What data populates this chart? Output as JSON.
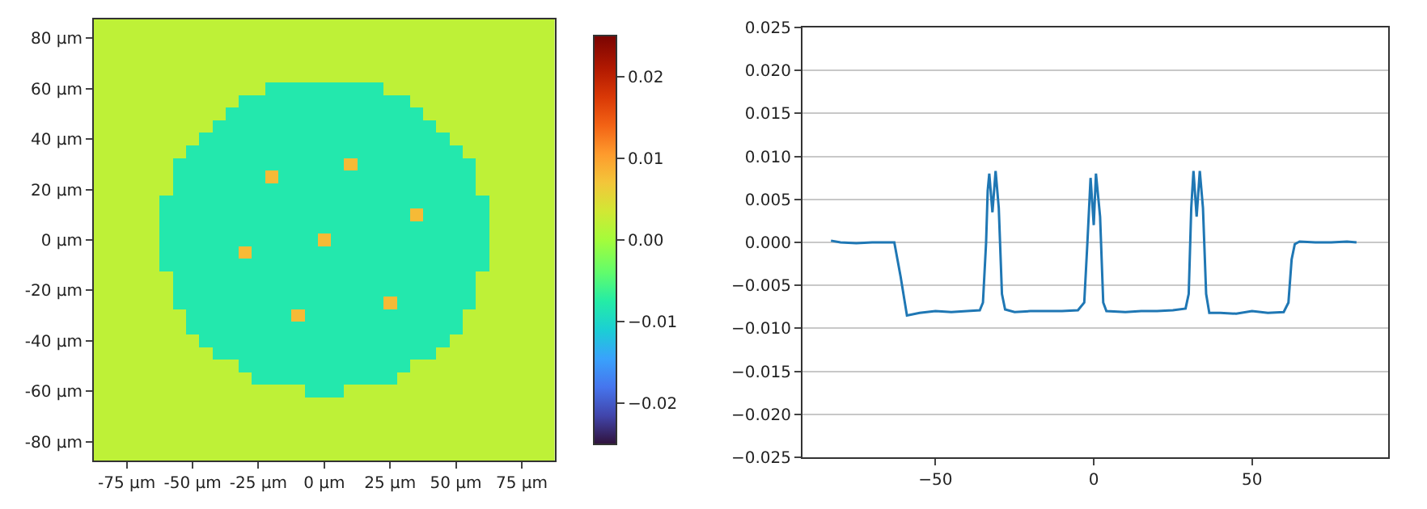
{
  "chart_data": [
    {
      "type": "heatmap",
      "x": [
        -85,
        -80,
        -75,
        -70,
        -65,
        -60,
        -55,
        -50,
        -45,
        -40,
        -35,
        -30,
        -25,
        -20,
        -15,
        -10,
        -5,
        0,
        5,
        10,
        15,
        20,
        25,
        30,
        35,
        40,
        45,
        50,
        55,
        60,
        65,
        70,
        75,
        80,
        85
      ],
      "y": [
        85,
        80,
        75,
        70,
        65,
        60,
        55,
        50,
        45,
        40,
        35,
        30,
        25,
        20,
        15,
        10,
        5,
        0,
        -5,
        -10,
        -15,
        -20,
        -25,
        -30,
        -35,
        -40,
        -45,
        -50,
        -55,
        -60,
        -65,
        -70,
        -75,
        -80,
        -85
      ],
      "cells": [
        [
          0.002,
          0.002,
          0.002,
          0.002,
          0.002,
          0.002,
          0.002,
          0.002,
          0.002,
          0.002,
          0.002,
          0.002,
          0.002,
          0.002,
          0.002,
          0.002,
          0.002,
          0.002,
          0.002,
          0.002,
          0.002,
          0.002,
          0.002,
          0.002,
          0.002,
          0.002,
          0.002,
          0.002,
          0.002,
          0.002,
          0.002,
          0.002,
          0.002,
          0.002,
          0.002
        ],
        [
          0.002,
          0.002,
          0.002,
          0.002,
          0.002,
          0.002,
          0.002,
          0.002,
          0.002,
          0.002,
          0.002,
          0.002,
          0.002,
          0.002,
          0.002,
          0.002,
          0.002,
          0.002,
          0.002,
          0.002,
          0.002,
          0.002,
          0.002,
          0.002,
          0.002,
          0.002,
          0.002,
          0.002,
          0.002,
          0.002,
          0.002,
          0.002,
          0.002,
          0.002,
          0.002
        ],
        [
          0.002,
          0.002,
          0.002,
          0.002,
          0.002,
          0.002,
          0.002,
          0.002,
          0.002,
          0.002,
          0.002,
          0.002,
          0.002,
          0.002,
          0.002,
          0.002,
          0.002,
          0.002,
          0.002,
          0.002,
          0.002,
          0.002,
          0.002,
          0.002,
          0.002,
          0.002,
          0.002,
          0.002,
          0.002,
          0.002,
          0.002,
          0.002,
          0.002,
          0.002,
          0.002
        ],
        [
          0.002,
          0.002,
          0.002,
          0.002,
          0.002,
          0.002,
          0.002,
          0.002,
          0.002,
          0.002,
          0.002,
          0.002,
          0.002,
          0.002,
          0.002,
          0.002,
          0.002,
          0.002,
          0.002,
          0.002,
          0.002,
          0.002,
          0.002,
          0.002,
          0.002,
          0.002,
          0.002,
          0.002,
          0.002,
          0.002,
          0.002,
          0.002,
          0.002,
          0.002,
          0.002
        ],
        [
          0.002,
          0.002,
          0.002,
          0.002,
          0.002,
          0.002,
          0.002,
          0.002,
          0.002,
          0.002,
          0.002,
          0.002,
          0.002,
          0.002,
          0.002,
          0.002,
          0.002,
          0.002,
          0.002,
          0.002,
          0.002,
          0.002,
          0.002,
          0.002,
          0.002,
          0.002,
          0.002,
          0.002,
          0.002,
          0.002,
          0.002,
          0.002,
          0.002,
          0.002,
          0.002
        ],
        [
          0.002,
          0.002,
          0.002,
          0.002,
          0.002,
          0.002,
          0.002,
          0.002,
          0.002,
          0.002,
          0.002,
          0.002,
          0.002,
          -0.008,
          -0.008,
          -0.008,
          -0.008,
          -0.008,
          -0.008,
          -0.008,
          -0.008,
          -0.008,
          0.002,
          0.002,
          0.002,
          0.002,
          0.002,
          0.002,
          0.002,
          0.002,
          0.002,
          0.002,
          0.002,
          0.002,
          0.002
        ],
        [
          0.002,
          0.002,
          0.002,
          0.002,
          0.002,
          0.002,
          0.002,
          0.002,
          0.002,
          0.002,
          0.002,
          -0.008,
          -0.008,
          -0.008,
          -0.008,
          -0.008,
          -0.008,
          -0.008,
          -0.008,
          -0.008,
          -0.008,
          -0.008,
          -0.008,
          -0.008,
          0.002,
          0.002,
          0.002,
          0.002,
          0.002,
          0.002,
          0.002,
          0.002,
          0.002,
          0.002,
          0.002
        ],
        [
          0.002,
          0.002,
          0.002,
          0.002,
          0.002,
          0.002,
          0.002,
          0.002,
          0.002,
          0.002,
          -0.008,
          -0.008,
          -0.008,
          -0.008,
          -0.008,
          -0.008,
          -0.008,
          -0.008,
          -0.008,
          -0.008,
          -0.008,
          -0.008,
          -0.008,
          -0.008,
          -0.008,
          0.002,
          0.002,
          0.002,
          0.002,
          0.002,
          0.002,
          0.002,
          0.002,
          0.002,
          0.002
        ],
        [
          0.002,
          0.002,
          0.002,
          0.002,
          0.002,
          0.002,
          0.002,
          0.002,
          0.002,
          -0.008,
          -0.008,
          -0.008,
          -0.008,
          -0.008,
          -0.008,
          -0.008,
          -0.008,
          -0.008,
          -0.008,
          -0.008,
          -0.008,
          -0.008,
          -0.008,
          -0.008,
          -0.008,
          -0.008,
          0.002,
          0.002,
          0.002,
          0.002,
          0.002,
          0.002,
          0.002,
          0.002,
          0.002
        ],
        [
          0.002,
          0.002,
          0.002,
          0.002,
          0.002,
          0.002,
          0.002,
          0.002,
          -0.008,
          -0.008,
          -0.008,
          -0.008,
          -0.008,
          -0.008,
          -0.008,
          -0.008,
          -0.008,
          -0.008,
          -0.008,
          -0.008,
          -0.008,
          -0.008,
          -0.008,
          -0.008,
          -0.008,
          -0.008,
          -0.008,
          0.002,
          0.002,
          0.002,
          0.002,
          0.002,
          0.002,
          0.002,
          0.002
        ],
        [
          0.002,
          0.002,
          0.002,
          0.002,
          0.002,
          0.002,
          0.002,
          -0.008,
          -0.008,
          -0.008,
          -0.008,
          -0.008,
          -0.008,
          -0.008,
          -0.008,
          -0.008,
          -0.008,
          -0.008,
          -0.008,
          -0.008,
          -0.008,
          -0.008,
          -0.008,
          -0.008,
          -0.008,
          -0.008,
          -0.008,
          -0.008,
          0.002,
          0.002,
          0.002,
          0.002,
          0.002,
          0.002,
          0.002
        ],
        [
          0.002,
          0.002,
          0.002,
          0.002,
          0.002,
          0.002,
          -0.008,
          -0.008,
          -0.008,
          -0.008,
          -0.008,
          -0.008,
          -0.008,
          -0.008,
          -0.008,
          -0.008,
          -0.008,
          -0.008,
          -0.008,
          0.008,
          -0.008,
          -0.008,
          -0.008,
          -0.008,
          -0.008,
          -0.008,
          -0.008,
          -0.008,
          -0.008,
          0.002,
          0.002,
          0.002,
          0.002,
          0.002,
          0.002
        ],
        [
          0.002,
          0.002,
          0.002,
          0.002,
          0.002,
          0.002,
          -0.008,
          -0.008,
          -0.008,
          -0.008,
          -0.008,
          -0.008,
          -0.008,
          0.008,
          -0.008,
          -0.008,
          -0.008,
          -0.008,
          -0.008,
          -0.008,
          -0.008,
          -0.008,
          -0.008,
          -0.008,
          -0.008,
          -0.008,
          -0.008,
          -0.008,
          -0.008,
          0.002,
          0.002,
          0.002,
          0.002,
          0.002,
          0.002
        ],
        [
          0.002,
          0.002,
          0.002,
          0.002,
          0.002,
          0.002,
          -0.008,
          -0.008,
          -0.008,
          -0.008,
          -0.008,
          -0.008,
          -0.008,
          -0.008,
          -0.008,
          -0.008,
          -0.008,
          -0.008,
          -0.008,
          -0.008,
          -0.008,
          -0.008,
          -0.008,
          -0.008,
          -0.008,
          -0.008,
          -0.008,
          -0.008,
          -0.008,
          0.002,
          0.002,
          0.002,
          0.002,
          0.002,
          0.002
        ],
        [
          0.002,
          0.002,
          0.002,
          0.002,
          0.002,
          -0.008,
          -0.008,
          -0.008,
          -0.008,
          -0.008,
          -0.008,
          -0.008,
          -0.008,
          -0.008,
          -0.008,
          -0.008,
          -0.008,
          -0.008,
          -0.008,
          -0.008,
          -0.008,
          -0.008,
          -0.008,
          -0.008,
          -0.008,
          -0.008,
          -0.008,
          -0.008,
          -0.008,
          -0.008,
          0.002,
          0.002,
          0.002,
          0.002,
          0.002
        ],
        [
          0.002,
          0.002,
          0.002,
          0.002,
          0.002,
          -0.008,
          -0.008,
          -0.008,
          -0.008,
          -0.008,
          -0.008,
          -0.008,
          -0.008,
          -0.008,
          -0.008,
          -0.008,
          -0.008,
          -0.008,
          -0.008,
          -0.008,
          -0.008,
          -0.008,
          -0.008,
          -0.008,
          0.008,
          -0.008,
          -0.008,
          -0.008,
          -0.008,
          -0.008,
          0.002,
          0.002,
          0.002,
          0.002,
          0.002
        ],
        [
          0.002,
          0.002,
          0.002,
          0.002,
          0.002,
          -0.008,
          -0.008,
          -0.008,
          -0.008,
          -0.008,
          -0.008,
          -0.008,
          -0.008,
          -0.008,
          -0.008,
          -0.008,
          -0.008,
          -0.008,
          -0.008,
          -0.008,
          -0.008,
          -0.008,
          -0.008,
          -0.008,
          -0.008,
          -0.008,
          -0.008,
          -0.008,
          -0.008,
          -0.008,
          0.002,
          0.002,
          0.002,
          0.002,
          0.002
        ],
        [
          0.002,
          0.002,
          0.002,
          0.002,
          0.002,
          -0.008,
          -0.008,
          -0.008,
          -0.008,
          -0.008,
          -0.008,
          -0.008,
          -0.008,
          -0.008,
          -0.008,
          -0.008,
          -0.008,
          0.008,
          -0.008,
          -0.008,
          -0.008,
          -0.008,
          -0.008,
          -0.008,
          -0.008,
          -0.008,
          -0.008,
          -0.008,
          -0.008,
          -0.008,
          0.002,
          0.002,
          0.002,
          0.002,
          0.002
        ],
        [
          0.002,
          0.002,
          0.002,
          0.002,
          0.002,
          -0.008,
          -0.008,
          -0.008,
          -0.008,
          -0.008,
          -0.008,
          0.008,
          -0.008,
          -0.008,
          -0.008,
          -0.008,
          -0.008,
          -0.008,
          -0.008,
          -0.008,
          -0.008,
          -0.008,
          -0.008,
          -0.008,
          -0.008,
          -0.008,
          -0.008,
          -0.008,
          -0.008,
          -0.008,
          0.002,
          0.002,
          0.002,
          0.002,
          0.002
        ],
        [
          0.002,
          0.002,
          0.002,
          0.002,
          0.002,
          -0.008,
          -0.008,
          -0.008,
          -0.008,
          -0.008,
          -0.008,
          -0.008,
          -0.008,
          -0.008,
          -0.008,
          -0.008,
          -0.008,
          -0.008,
          -0.008,
          -0.008,
          -0.008,
          -0.008,
          -0.008,
          -0.008,
          -0.008,
          -0.008,
          -0.008,
          -0.008,
          -0.008,
          -0.008,
          0.002,
          0.002,
          0.002,
          0.002,
          0.002
        ],
        [
          0.002,
          0.002,
          0.002,
          0.002,
          0.002,
          0.002,
          -0.008,
          -0.008,
          -0.008,
          -0.008,
          -0.008,
          -0.008,
          -0.008,
          -0.008,
          -0.008,
          -0.008,
          -0.008,
          -0.008,
          -0.008,
          -0.008,
          -0.008,
          -0.008,
          -0.008,
          -0.008,
          -0.008,
          -0.008,
          -0.008,
          -0.008,
          -0.008,
          0.002,
          0.002,
          0.002,
          0.002,
          0.002,
          0.002
        ],
        [
          0.002,
          0.002,
          0.002,
          0.002,
          0.002,
          0.002,
          -0.008,
          -0.008,
          -0.008,
          -0.008,
          -0.008,
          -0.008,
          -0.008,
          -0.008,
          -0.008,
          -0.008,
          -0.008,
          -0.008,
          -0.008,
          -0.008,
          -0.008,
          -0.008,
          -0.008,
          -0.008,
          -0.008,
          -0.008,
          -0.008,
          -0.008,
          -0.008,
          0.002,
          0.002,
          0.002,
          0.002,
          0.002,
          0.002
        ],
        [
          0.002,
          0.002,
          0.002,
          0.002,
          0.002,
          0.002,
          -0.008,
          -0.008,
          -0.008,
          -0.008,
          -0.008,
          -0.008,
          -0.008,
          -0.008,
          -0.008,
          -0.008,
          -0.008,
          -0.008,
          -0.008,
          -0.008,
          -0.008,
          -0.008,
          0.008,
          -0.008,
          -0.008,
          -0.008,
          -0.008,
          -0.008,
          -0.008,
          0.002,
          0.002,
          0.002,
          0.002,
          0.002,
          0.002
        ],
        [
          0.002,
          0.002,
          0.002,
          0.002,
          0.002,
          0.002,
          0.002,
          -0.008,
          -0.008,
          -0.008,
          -0.008,
          -0.008,
          -0.008,
          -0.008,
          -0.008,
          0.008,
          -0.008,
          -0.008,
          -0.008,
          -0.008,
          -0.008,
          -0.008,
          -0.008,
          -0.008,
          -0.008,
          -0.008,
          -0.008,
          -0.008,
          0.002,
          0.002,
          0.002,
          0.002,
          0.002,
          0.002,
          0.002
        ],
        [
          0.002,
          0.002,
          0.002,
          0.002,
          0.002,
          0.002,
          0.002,
          -0.008,
          -0.008,
          -0.008,
          -0.008,
          -0.008,
          -0.008,
          -0.008,
          -0.008,
          -0.008,
          -0.008,
          -0.008,
          -0.008,
          -0.008,
          -0.008,
          -0.008,
          -0.008,
          -0.008,
          -0.008,
          -0.008,
          -0.008,
          -0.008,
          0.002,
          0.002,
          0.002,
          0.002,
          0.002,
          0.002,
          0.002
        ],
        [
          0.002,
          0.002,
          0.002,
          0.002,
          0.002,
          0.002,
          0.002,
          0.002,
          -0.008,
          -0.008,
          -0.008,
          -0.008,
          -0.008,
          -0.008,
          -0.008,
          -0.008,
          -0.008,
          -0.008,
          -0.008,
          -0.008,
          -0.008,
          -0.008,
          -0.008,
          -0.008,
          -0.008,
          -0.008,
          -0.008,
          0.002,
          0.002,
          0.002,
          0.002,
          0.002,
          0.002,
          0.002,
          0.002
        ],
        [
          0.002,
          0.002,
          0.002,
          0.002,
          0.002,
          0.002,
          0.002,
          0.002,
          0.002,
          -0.008,
          -0.008,
          -0.008,
          -0.008,
          -0.008,
          -0.008,
          -0.008,
          -0.008,
          -0.008,
          -0.008,
          -0.008,
          -0.008,
          -0.008,
          -0.008,
          -0.008,
          -0.008,
          -0.008,
          0.002,
          0.002,
          0.002,
          0.002,
          0.002,
          0.002,
          0.002,
          0.002,
          0.002
        ],
        [
          0.002,
          0.002,
          0.002,
          0.002,
          0.002,
          0.002,
          0.002,
          0.002,
          0.002,
          0.002,
          0.002,
          -0.008,
          -0.008,
          -0.008,
          -0.008,
          -0.008,
          -0.008,
          -0.008,
          -0.008,
          -0.008,
          -0.008,
          -0.008,
          -0.008,
          -0.008,
          0.002,
          0.002,
          0.002,
          0.002,
          0.002,
          0.002,
          0.002,
          0.002,
          0.002,
          0.002,
          0.002
        ],
        [
          0.002,
          0.002,
          0.002,
          0.002,
          0.002,
          0.002,
          0.002,
          0.002,
          0.002,
          0.002,
          0.002,
          0.002,
          -0.008,
          -0.008,
          -0.008,
          -0.008,
          -0.008,
          -0.008,
          -0.008,
          -0.008,
          -0.008,
          -0.008,
          -0.008,
          0.002,
          0.002,
          0.002,
          0.002,
          0.002,
          0.002,
          0.002,
          0.002,
          0.002,
          0.002,
          0.002,
          0.002
        ],
        [
          0.002,
          0.002,
          0.002,
          0.002,
          0.002,
          0.002,
          0.002,
          0.002,
          0.002,
          0.002,
          0.002,
          0.002,
          0.002,
          0.002,
          0.002,
          0.002,
          -0.008,
          -0.008,
          -0.008,
          0.002,
          0.002,
          0.002,
          0.002,
          0.002,
          0.002,
          0.002,
          0.002,
          0.002,
          0.002,
          0.002,
          0.002,
          0.002,
          0.002,
          0.002,
          0.002
        ],
        [
          0.002,
          0.002,
          0.002,
          0.002,
          0.002,
          0.002,
          0.002,
          0.002,
          0.002,
          0.002,
          0.002,
          0.002,
          0.002,
          0.002,
          0.002,
          0.002,
          0.002,
          0.002,
          0.002,
          0.002,
          0.002,
          0.002,
          0.002,
          0.002,
          0.002,
          0.002,
          0.002,
          0.002,
          0.002,
          0.002,
          0.002,
          0.002,
          0.002,
          0.002,
          0.002
        ],
        [
          0.002,
          0.002,
          0.002,
          0.002,
          0.002,
          0.002,
          0.002,
          0.002,
          0.002,
          0.002,
          0.002,
          0.002,
          0.002,
          0.002,
          0.002,
          0.002,
          0.002,
          0.002,
          0.002,
          0.002,
          0.002,
          0.002,
          0.002,
          0.002,
          0.002,
          0.002,
          0.002,
          0.002,
          0.002,
          0.002,
          0.002,
          0.002,
          0.002,
          0.002,
          0.002
        ],
        [
          0.002,
          0.002,
          0.002,
          0.002,
          0.002,
          0.002,
          0.002,
          0.002,
          0.002,
          0.002,
          0.002,
          0.002,
          0.002,
          0.002,
          0.002,
          0.002,
          0.002,
          0.002,
          0.002,
          0.002,
          0.002,
          0.002,
          0.002,
          0.002,
          0.002,
          0.002,
          0.002,
          0.002,
          0.002,
          0.002,
          0.002,
          0.002,
          0.002,
          0.002,
          0.002
        ],
        [
          0.002,
          0.002,
          0.002,
          0.002,
          0.002,
          0.002,
          0.002,
          0.002,
          0.002,
          0.002,
          0.002,
          0.002,
          0.002,
          0.002,
          0.002,
          0.002,
          0.002,
          0.002,
          0.002,
          0.002,
          0.002,
          0.002,
          0.002,
          0.002,
          0.002,
          0.002,
          0.002,
          0.002,
          0.002,
          0.002,
          0.002,
          0.002,
          0.002,
          0.002,
          0.002
        ],
        [
          0.002,
          0.002,
          0.002,
          0.002,
          0.002,
          0.002,
          0.002,
          0.002,
          0.002,
          0.002,
          0.002,
          0.002,
          0.002,
          0.002,
          0.002,
          0.002,
          0.002,
          0.002,
          0.002,
          0.002,
          0.002,
          0.002,
          0.002,
          0.002,
          0.002,
          0.002,
          0.002,
          0.002,
          0.002,
          0.002,
          0.002,
          0.002,
          0.002,
          0.002,
          0.002
        ]
      ],
      "xlim": [
        -87.5,
        87.5
      ],
      "ylim": [
        -87.5,
        87.5
      ],
      "xticks": [
        {
          "value": -75,
          "label": "-75 µm"
        },
        {
          "value": -50,
          "label": "-50 µm"
        },
        {
          "value": -25,
          "label": "-25 µm"
        },
        {
          "value": 0,
          "label": "0 µm"
        },
        {
          "value": 25,
          "label": "25 µm"
        },
        {
          "value": 50,
          "label": "50 µm"
        },
        {
          "value": 75,
          "label": "75 µm"
        }
      ],
      "yticks": [
        {
          "value": -80,
          "label": "-80 µm"
        },
        {
          "value": -60,
          "label": "-60 µm"
        },
        {
          "value": -40,
          "label": "-40 µm"
        },
        {
          "value": -20,
          "label": "-20 µm"
        },
        {
          "value": 0,
          "label": "0 µm"
        },
        {
          "value": 20,
          "label": "20 µm"
        },
        {
          "value": 40,
          "label": "40 µm"
        },
        {
          "value": 60,
          "label": "60 µm"
        },
        {
          "value": 80,
          "label": "80 µm"
        }
      ],
      "clim": [
        -0.025,
        0.025
      ],
      "cticks": [
        {
          "value": -0.02,
          "label": "−0.02"
        },
        {
          "value": -0.01,
          "label": "−0.01"
        },
        {
          "value": 0,
          "label": "0.00"
        },
        {
          "value": 0.01,
          "label": "0.01"
        },
        {
          "value": 0.02,
          "label": "0.02"
        }
      ]
    },
    {
      "type": "line",
      "x": [
        -83,
        -80,
        -75,
        -70,
        -65,
        -63,
        -61,
        -59,
        -55,
        -50,
        -45,
        -40,
        -36,
        -35,
        -34,
        -33.5,
        -33,
        -32,
        -31,
        -30,
        -29,
        -28,
        -25,
        -20,
        -15,
        -10,
        -5,
        -3,
        -2,
        -1,
        0,
        0.7,
        2,
        3,
        4,
        10,
        15,
        20,
        25,
        29,
        30,
        30.8,
        31.5,
        32.5,
        33.5,
        34.5,
        35.5,
        36.5,
        40,
        45,
        50,
        55,
        60,
        61.5,
        62.5,
        63.5,
        65,
        70,
        75,
        80,
        83
      ],
      "series": [
        {
          "color": "#1f77b4",
          "values": [
            0.0002,
            0,
            -0.0001,
            0,
            0,
            0,
            -0.004,
            -0.0085,
            -0.0082,
            -0.008,
            -0.0081,
            -0.008,
            -0.0079,
            -0.007,
            0,
            0.006,
            0.008,
            0.0035,
            0.0083,
            0.004,
            -0.006,
            -0.0078,
            -0.0081,
            -0.008,
            -0.008,
            -0.008,
            -0.0079,
            -0.007,
            0,
            0.0075,
            0.002,
            0.008,
            0.003,
            -0.007,
            -0.008,
            -0.0081,
            -0.008,
            -0.008,
            -0.0079,
            -0.0077,
            -0.006,
            0.004,
            0.0083,
            0.003,
            0.0083,
            0.004,
            -0.006,
            -0.0082,
            -0.0082,
            -0.0083,
            -0.008,
            -0.0082,
            -0.0081,
            -0.007,
            -0.002,
            -0.0002,
            0.0001,
            0,
            0,
            0.0001,
            0
          ]
        }
      ],
      "xlim": [
        -92,
        93
      ],
      "ylim": [
        -0.025,
        0.025
      ],
      "xticks": [
        {
          "value": -50,
          "label": "−50"
        },
        0,
        50
      ],
      "yticks": [
        {
          "value": -0.025,
          "label": "−0.025"
        },
        {
          "value": -0.02,
          "label": "−0.020"
        },
        {
          "value": -0.015,
          "label": "−0.015"
        },
        {
          "value": -0.01,
          "label": "−0.010"
        },
        {
          "value": -0.005,
          "label": "−0.005"
        },
        {
          "value": 0,
          "label": "0.000"
        },
        {
          "value": 0.005,
          "label": "0.005"
        },
        {
          "value": 0.01,
          "label": "0.010"
        },
        {
          "value": 0.015,
          "label": "0.015"
        },
        {
          "value": 0.02,
          "label": "0.020"
        },
        {
          "value": 0.025,
          "label": "0.025"
        }
      ],
      "grid": "y"
    }
  ]
}
